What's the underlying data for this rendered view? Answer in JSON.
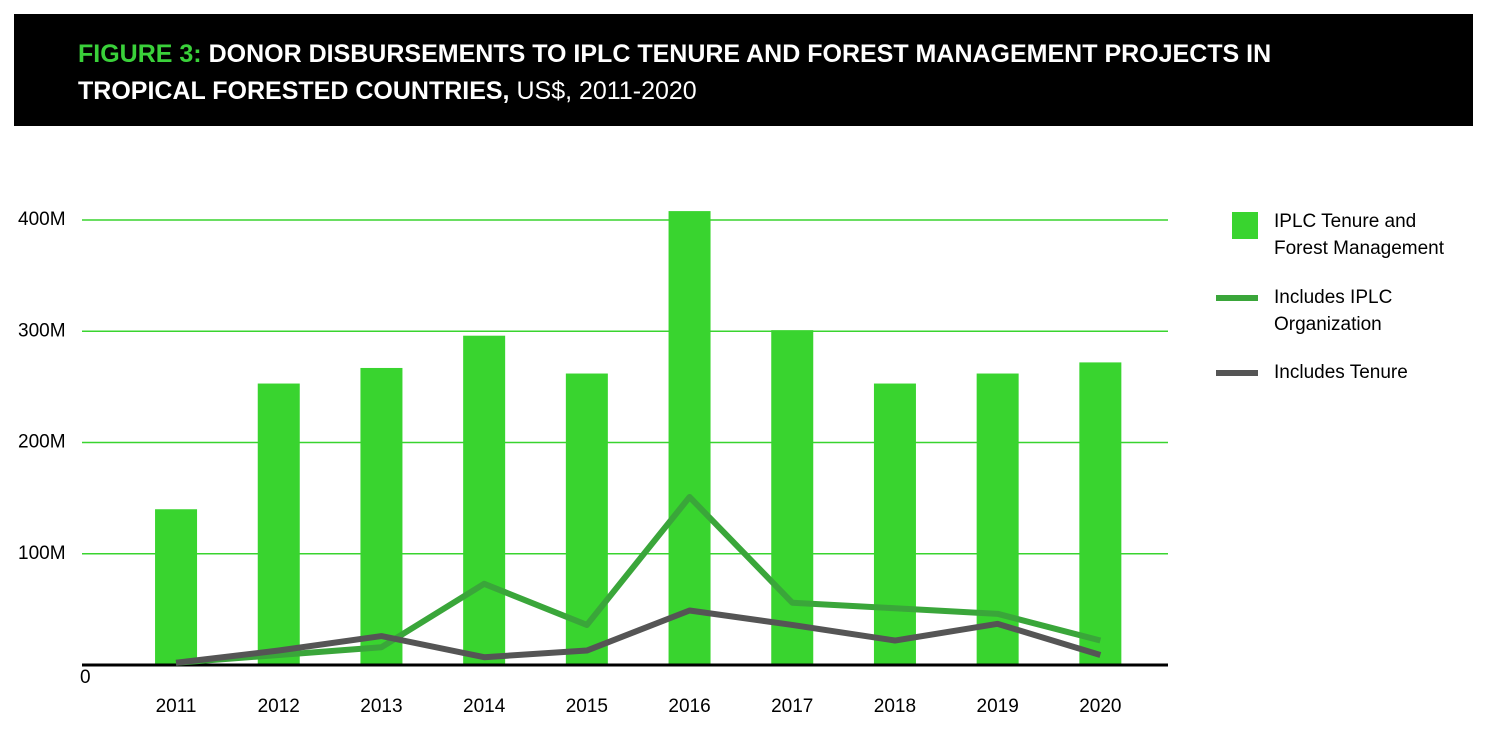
{
  "chart_data": {
    "type": "bar_line",
    "title": {
      "label": "FIGURE 3:",
      "text": "DONOR DISBURSEMENTS TO IPLC TENURE AND FOREST MANAGEMENT PROJECTS IN TROPICAL FORESTED COUNTRIES,",
      "units": "US$, 2011-2020"
    },
    "categories": [
      "2011",
      "2012",
      "2013",
      "2014",
      "2015",
      "2016",
      "2017",
      "2018",
      "2019",
      "2020"
    ],
    "series": [
      {
        "name": "IPLC Tenure and Forest Management",
        "type": "bar",
        "color": "#39d42f",
        "values": [
          140000000,
          253000000,
          267000000,
          296000000,
          262000000,
          408000000,
          301000000,
          253000000,
          262000000,
          272000000
        ]
      },
      {
        "name": "Includes IPLC Organization",
        "type": "line",
        "color": "#3aa63a",
        "values": [
          2000000,
          9000000,
          16000000,
          73000000,
          36000000,
          151000000,
          56000000,
          51000000,
          46000000,
          22000000
        ]
      },
      {
        "name": "Includes Tenure",
        "type": "line",
        "color": "#555555",
        "values": [
          2000000,
          13000000,
          26000000,
          7000000,
          13000000,
          49000000,
          36000000,
          22000000,
          37000000,
          9000000
        ]
      }
    ],
    "ylim": [
      0,
      400000000
    ],
    "yticks": [
      0,
      {
        "value": 100000000,
        "label": "100M"
      },
      {
        "value": 200000000,
        "label": "200M"
      },
      {
        "value": 300000000,
        "label": "300M"
      },
      {
        "value": 400000000,
        "label": "400M"
      }
    ],
    "grid": true,
    "grid_color": "#39d42f",
    "legend": "right"
  }
}
